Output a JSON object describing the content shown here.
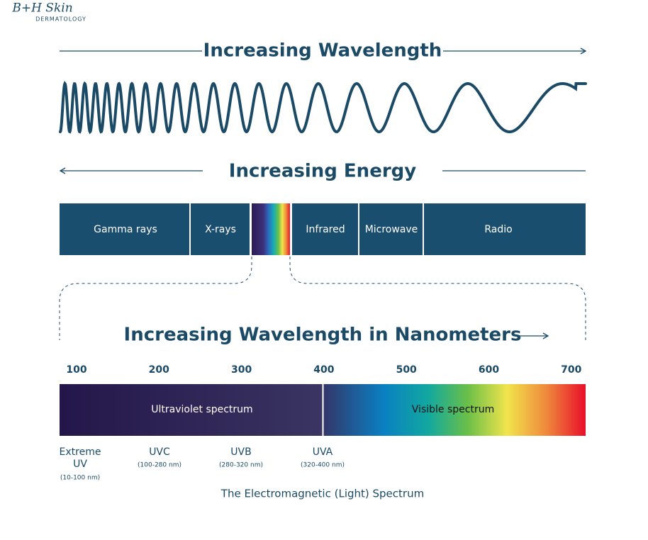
{
  "logo": {
    "name": "B+H Skin",
    "subtitle": "DERMATOLOGY"
  },
  "wavelength_heading": "Increasing Wavelength",
  "energy_heading": "Increasing Energy",
  "bands": [
    "Gamma rays",
    "X-rays",
    "Infrared",
    "Microwave",
    "Radio"
  ],
  "nanometer_heading": "Increasing Wavelength in Nanometers",
  "scale": [
    100,
    200,
    300,
    400,
    500,
    600,
    700
  ],
  "spectrum": {
    "ultraviolet": "Ultraviolet spectrum",
    "visible": "Visible spectrum"
  },
  "uv_bands": [
    {
      "name": "Extreme UV",
      "range": "(10-100 nm)"
    },
    {
      "name": "UVC",
      "range": "(100-280 nm)"
    },
    {
      "name": "UVB",
      "range": "(280-320 nm)"
    },
    {
      "name": "UVA",
      "range": "(320-400 nm)"
    }
  ],
  "caption": "The Electromagnetic (Light) Spectrum"
}
